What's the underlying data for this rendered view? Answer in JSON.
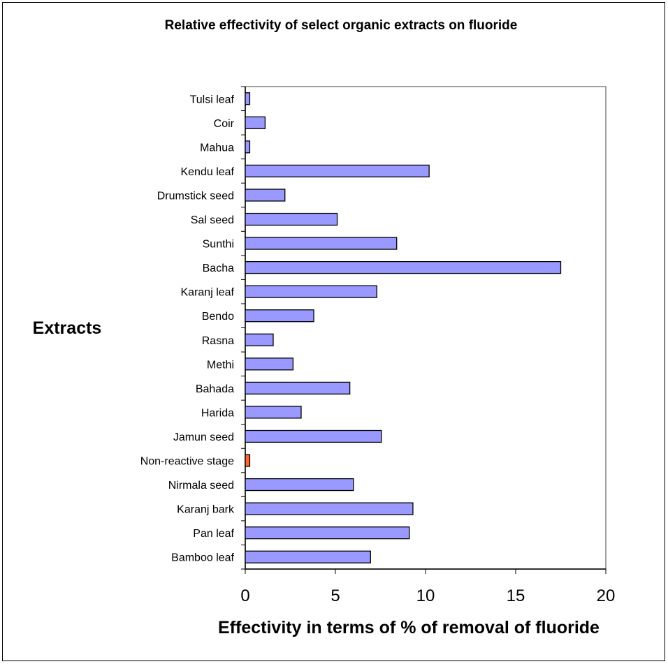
{
  "chart_data": {
    "type": "bar",
    "orientation": "horizontal",
    "title": "Relative effectivity of select organic extracts on fluoride",
    "xlabel": "Effectivity in terms of % of removal of fluoride",
    "ylabel": "Extracts",
    "xlim": [
      0,
      20
    ],
    "xticks": [
      0,
      5,
      10,
      15,
      20
    ],
    "grid": false,
    "categories": [
      "Tulsi leaf",
      "Coir",
      "Mahua",
      "Kendu leaf",
      "Drumstick seed",
      "Sal seed",
      "Sunthi",
      "Bacha",
      "Karanj leaf",
      "Bendo",
      "Rasna",
      "Methi",
      "Bahada",
      "Harida",
      "Jamun seed",
      "Non-reactive stage",
      "Nirmala seed",
      "Karanj bark",
      "Pan leaf",
      "Bamboo leaf"
    ],
    "values": [
      0.25,
      1.1,
      0.25,
      10.2,
      2.2,
      5.1,
      8.4,
      17.5,
      7.3,
      3.8,
      1.55,
      2.65,
      5.8,
      3.1,
      7.55,
      0.25,
      6.0,
      9.3,
      9.1,
      6.95
    ],
    "colors": {
      "bar": "#9999ff",
      "highlight": "#ff6633",
      "highlight_category": "Non-reactive stage",
      "axis": "#808080"
    }
  }
}
